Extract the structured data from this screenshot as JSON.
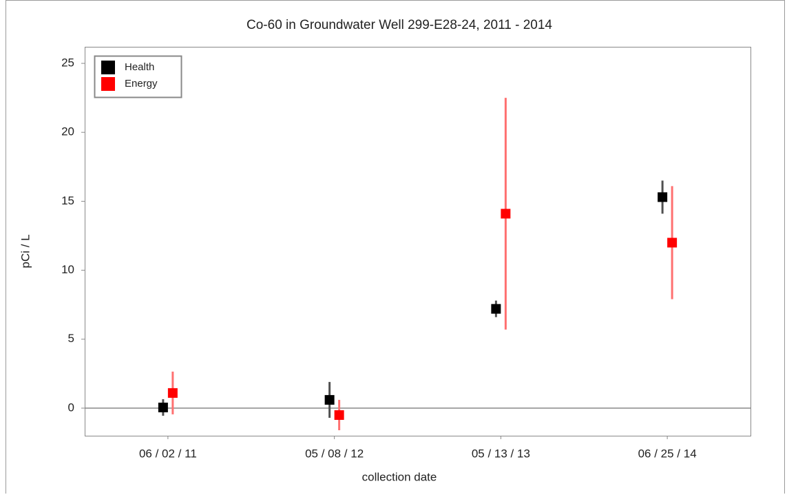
{
  "chart_data": {
    "type": "errorbar",
    "title": "Co-60 in Groundwater Well 299-E28-24, 2011 - 2014",
    "xlabel": "collection date",
    "ylabel": "pCi / L",
    "categories": [
      "06 / 02 / 11",
      "05 / 08 / 12",
      "05 / 13 / 13",
      "06 / 25 / 14"
    ],
    "series": [
      {
        "name": "Health",
        "color": "#000000",
        "error_color": "#505050",
        "values": [
          0.05,
          0.6,
          7.2,
          15.3
        ],
        "errors": [
          0.6,
          1.3,
          0.6,
          1.2
        ]
      },
      {
        "name": "Energy",
        "color": "#ff0000",
        "error_color": "#ff7070",
        "values": [
          1.1,
          -0.5,
          14.1,
          12.0
        ],
        "errors": [
          1.55,
          1.1,
          8.4,
          4.1
        ]
      }
    ],
    "ylim": [
      -2,
      26.2
    ],
    "yticks": [
      0,
      5,
      10,
      15,
      20,
      25
    ],
    "zero_line": true,
    "legend": "upper-left"
  }
}
